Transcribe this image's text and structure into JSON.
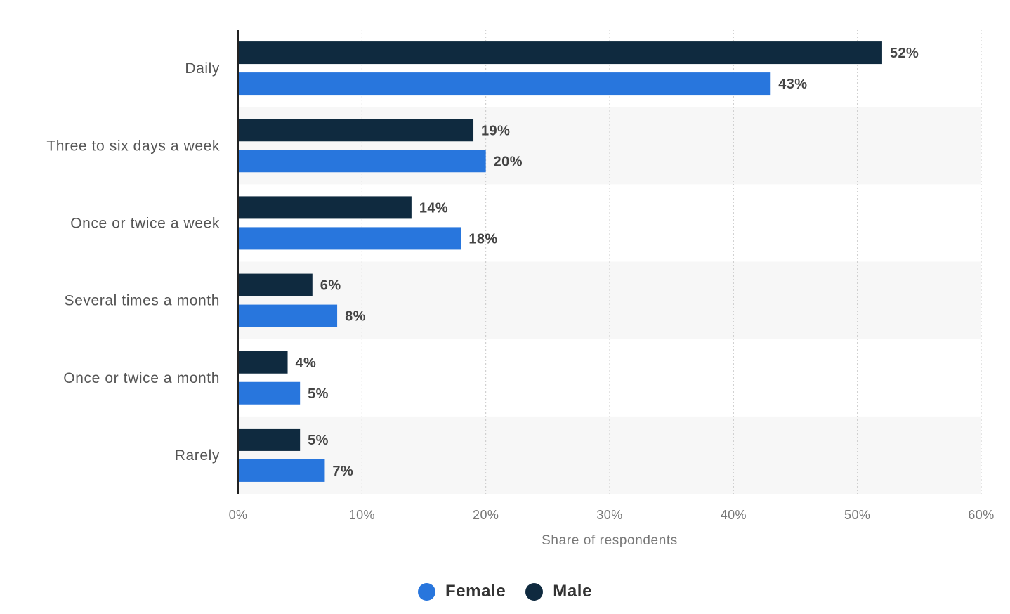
{
  "colors": {
    "female": "#2876dd",
    "male": "#0f2a3f",
    "band": "#f7f7f7",
    "axis": "#222222",
    "grid": "#c8c8c8"
  },
  "legend": {
    "items": [
      {
        "label": "Female",
        "color": "#2876dd"
      },
      {
        "label": "Male",
        "color": "#0f2a3f"
      }
    ]
  },
  "chart_data": {
    "type": "bar",
    "orientation": "horizontal",
    "categories": [
      "Daily",
      "Three to six days a week",
      "Once or twice a week",
      "Several times a month",
      "Once or twice a month",
      "Rarely"
    ],
    "series": [
      {
        "name": "Male",
        "values": [
          52,
          19,
          14,
          6,
          4,
          5
        ],
        "labels": [
          "52%",
          "19%",
          "14%",
          "6%",
          "4%",
          "5%"
        ]
      },
      {
        "name": "Female",
        "values": [
          43,
          20,
          18,
          8,
          5,
          7
        ],
        "labels": [
          "43%",
          "20%",
          "18%",
          "8%",
          "5%",
          "7%"
        ]
      }
    ],
    "xlabel": "Share of respondents",
    "ylabel": "",
    "xlim": [
      0,
      60
    ],
    "ticks": [
      0,
      10,
      20,
      30,
      40,
      50,
      60
    ],
    "tick_labels": [
      "0%",
      "10%",
      "20%",
      "30%",
      "40%",
      "50%",
      "60%"
    ],
    "grid": true,
    "legend_position": "bottom"
  }
}
